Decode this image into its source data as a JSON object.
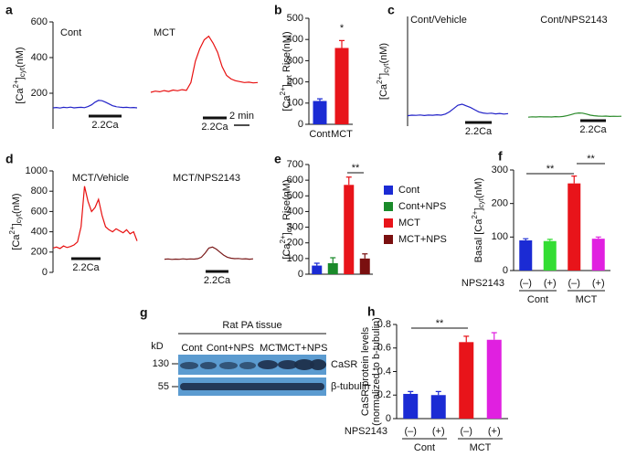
{
  "chart_data": [
    {
      "panel": "a",
      "type": "line",
      "title": "Cont",
      "ylabel": "[Ca2+]cyt(nM)",
      "yaxis": true,
      "ylim": [
        0,
        600
      ],
      "yticks": [
        200,
        400,
        600
      ],
      "xlim": [
        0,
        12
      ],
      "x": [
        0,
        0.5,
        1,
        1.5,
        2,
        2.5,
        3,
        3.5,
        4,
        4.5,
        5,
        5.5,
        6,
        6.5,
        7,
        7.5,
        8,
        8.5,
        9,
        9.5,
        10,
        10.5,
        11,
        11.5,
        12
      ],
      "stimulus": "2.2Ca",
      "series": [
        {
          "color": "#2323c8",
          "values": [
            118,
            120,
            117,
            121,
            119,
            122,
            118,
            120,
            121,
            119,
            125,
            135,
            150,
            160,
            158,
            150,
            140,
            130,
            125,
            122,
            120,
            121,
            119,
            120,
            118
          ]
        }
      ]
    },
    {
      "type": "line",
      "title": "MCT",
      "yaxis": false,
      "ylim": [
        0,
        600
      ],
      "xlim": [
        0,
        12
      ],
      "x": [
        0,
        0.5,
        1,
        1.5,
        2,
        2.5,
        3,
        3.5,
        4,
        4.5,
        5,
        5.5,
        6,
        6.5,
        7,
        7.5,
        8,
        8.5,
        9,
        9.5,
        10,
        10.5,
        11,
        11.5,
        12
      ],
      "stimulus": "2.2Ca",
      "scalebar": "2 min",
      "series": [
        {
          "color": "#e81010",
          "values": [
            205,
            212,
            208,
            215,
            210,
            218,
            214,
            220,
            216,
            260,
            380,
            450,
            500,
            520,
            480,
            430,
            350,
            300,
            280,
            270,
            265,
            260,
            262,
            258,
            260
          ]
        }
      ]
    },
    {
      "panel": "b",
      "type": "bar",
      "ylabel": "[Ca2+]cyt Rise(nM)",
      "ylim": [
        0,
        500
      ],
      "yticks": [
        0,
        100,
        200,
        300,
        400,
        500
      ],
      "categories": [
        "Cont",
        "MCT"
      ],
      "values": [
        110,
        360
      ],
      "errors": [
        10,
        35
      ],
      "colors": [
        "#1b2bd4",
        "#e8141a"
      ],
      "annotations": [
        "*"
      ]
    },
    {
      "panel": "c",
      "type": "line",
      "title": "Cont/Vehicle",
      "ylabel": "[Ca2+]cyt(nM)",
      "yaxis": true,
      "ylim": [
        0,
        1000
      ],
      "xlim": [
        0,
        12
      ],
      "x": [
        0,
        0.5,
        1,
        1.5,
        2,
        2.5,
        3,
        3.5,
        4,
        4.5,
        5,
        5.5,
        6,
        6.5,
        7,
        7.5,
        8,
        8.5,
        9,
        9.5,
        10,
        10.5,
        11,
        11.5,
        12
      ],
      "stimulus": "2.2Ca",
      "series": [
        {
          "color": "#2323c8",
          "values": [
            95,
            100,
            98,
            102,
            97,
            101,
            99,
            103,
            100,
            110,
            130,
            160,
            190,
            200,
            185,
            170,
            150,
            130,
            120,
            115,
            118,
            112,
            116,
            110,
            114
          ]
        }
      ]
    },
    {
      "type": "line",
      "title": "Cont/NPS2143",
      "yaxis": false,
      "ylim": [
        0,
        1000
      ],
      "xlim": [
        0,
        12
      ],
      "x": [
        0,
        0.5,
        1,
        1.5,
        2,
        2.5,
        3,
        3.5,
        4,
        4.5,
        5,
        5.5,
        6,
        6.5,
        7,
        7.5,
        8,
        8.5,
        9,
        9.5,
        10,
        10.5,
        11,
        11.5,
        12
      ],
      "stimulus": "2.2Ca",
      "series": [
        {
          "color": "#2a8a2a",
          "values": [
            82,
            85,
            83,
            86,
            84,
            85,
            83,
            87,
            85,
            88,
            95,
            105,
            115,
            120,
            118,
            110,
            100,
            95,
            92,
            90,
            92,
            88,
            90,
            89,
            90
          ]
        }
      ]
    },
    {
      "panel": "d",
      "type": "line",
      "title": "MCT/Vehicle",
      "ylabel": "[Ca2+]cyt(nM)",
      "yaxis": true,
      "ylim": [
        0,
        1000
      ],
      "yticks": [
        0,
        200,
        400,
        600,
        800,
        1000
      ],
      "xlim": [
        0,
        12
      ],
      "x": [
        0,
        0.5,
        1,
        1.5,
        2,
        2.5,
        3,
        3.5,
        4,
        4.5,
        5,
        5.5,
        6,
        6.5,
        7,
        7.5,
        8,
        8.5,
        9,
        9.5,
        10,
        10.5,
        11,
        11.5,
        12
      ],
      "stimulus": "2.2Ca",
      "series": [
        {
          "color": "#e81010",
          "values": [
            240,
            250,
            235,
            260,
            245,
            255,
            270,
            300,
            450,
            850,
            700,
            600,
            640,
            720,
            560,
            450,
            420,
            400,
            430,
            410,
            390,
            420,
            380,
            400,
            310
          ]
        }
      ]
    },
    {
      "type": "line",
      "title": "MCT/NPS2143",
      "yaxis": false,
      "ylim": [
        0,
        1000
      ],
      "xlim": [
        0,
        12
      ],
      "x": [
        0,
        0.5,
        1,
        1.5,
        2,
        2.5,
        3,
        3.5,
        4,
        4.5,
        5,
        5.5,
        6,
        6.5,
        7,
        7.5,
        8,
        8.5,
        9,
        9.5,
        10,
        10.5,
        11,
        11.5,
        12
      ],
      "stimulus": "2.2Ca",
      "series": [
        {
          "color": "#7a1a1a",
          "values": [
            130,
            132,
            128,
            131,
            129,
            133,
            130,
            132,
            131,
            135,
            150,
            190,
            240,
            250,
            230,
            200,
            170,
            150,
            140,
            135,
            137,
            132,
            134,
            130,
            133
          ]
        }
      ]
    },
    {
      "panel": "e",
      "type": "bar",
      "legend": true,
      "ylabel": "[Ca2+]cyt Rise(nM)",
      "ylim": [
        0,
        700
      ],
      "yticks": [
        0,
        100,
        200,
        300,
        400,
        500,
        600,
        700
      ],
      "categories": [
        "Cont",
        "Cont+NPS",
        "MCT",
        "MCT+NPS"
      ],
      "values": [
        55,
        70,
        570,
        100
      ],
      "errors": [
        15,
        35,
        50,
        30
      ],
      "colors": [
        "#1b2bd4",
        "#1a8a2a",
        "#e8141a",
        "#7a1010"
      ],
      "annotations": [
        "**"
      ]
    },
    {
      "panel": "f",
      "type": "bar",
      "ylabel": "Basal [Ca2+]cyt(nM)",
      "ylim": [
        0,
        300
      ],
      "yticks": [
        0,
        100,
        200,
        300
      ],
      "xlabel": "NPS2143",
      "categories": [
        "(–)",
        "(+)",
        "(–)",
        "(+)"
      ],
      "groups": [
        "Cont",
        "MCT"
      ],
      "values": [
        90,
        88,
        260,
        95
      ],
      "errors": [
        5,
        5,
        22,
        5
      ],
      "colors": [
        "#1b2bd4",
        "#33dd33",
        "#e8141a",
        "#e020e0"
      ],
      "annotations": [
        "**",
        "**"
      ]
    },
    {
      "panel": "h",
      "type": "bar",
      "ylabel": [
        "CaSR protein levels",
        "(normalized to b-tubulin)"
      ],
      "ylim": [
        0,
        0.8
      ],
      "yticks": [
        0,
        0.2,
        0.4,
        0.6,
        0.8
      ],
      "xlabel": "NPS2143",
      "categories": [
        "(–)",
        "(+)",
        "(–)",
        "(+)"
      ],
      "groups": [
        "Cont",
        "MCT"
      ],
      "values": [
        0.21,
        0.2,
        0.65,
        0.67
      ],
      "errors": [
        0.02,
        0.03,
        0.05,
        0.06
      ],
      "colors": [
        "#1b2bd4",
        "#1b2bd4",
        "#e8141a",
        "#e020e0"
      ],
      "annotations": [
        "**"
      ]
    }
  ],
  "blot": {
    "panel": "g",
    "title": "Rat PA tissue",
    "unit": "kD",
    "lanes": [
      {
        "label": "Cont",
        "color": "#1b2bd4"
      },
      {
        "label": "Cont+NPS",
        "color": "#1b2bd4"
      },
      {
        "label": "MCT",
        "color": "#e8141a"
      },
      {
        "label": "MCT+NPS",
        "color": "#e8141a"
      }
    ],
    "markers": [
      130,
      55
    ],
    "bands": [
      "CaSR",
      "β-tubulin"
    ]
  }
}
